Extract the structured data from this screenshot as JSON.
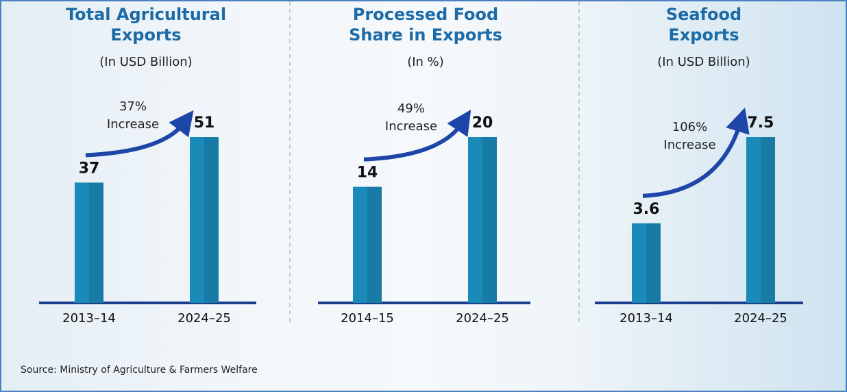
{
  "chart_data": [
    {
      "type": "bar",
      "title": "Total Agricultural Exports",
      "subtitle": "(In USD Billion)",
      "categories": [
        "2013–14",
        "2024–25"
      ],
      "values": [
        37,
        51
      ],
      "color": "#1a8ab8",
      "annotation": [
        "37%",
        "Increase"
      ]
    },
    {
      "type": "bar",
      "title": "Processed Food Share in Exports",
      "subtitle": "(In %)",
      "categories": [
        "2014–15",
        "2024–25"
      ],
      "values": [
        14,
        20
      ],
      "color": "#1a8ab8",
      "annotation": [
        "49%",
        "Increase"
      ]
    },
    {
      "type": "bar",
      "title": "Seafood Exports",
      "subtitle": "(In USD Billion)",
      "categories": [
        "2013–14",
        "2024–25"
      ],
      "values": [
        3.6,
        7.5
      ],
      "color": "#1a8ab8",
      "annotation": [
        "106%",
        "Increase"
      ]
    }
  ],
  "source": "Source: Ministry of Agriculture & Farmers Welfare"
}
